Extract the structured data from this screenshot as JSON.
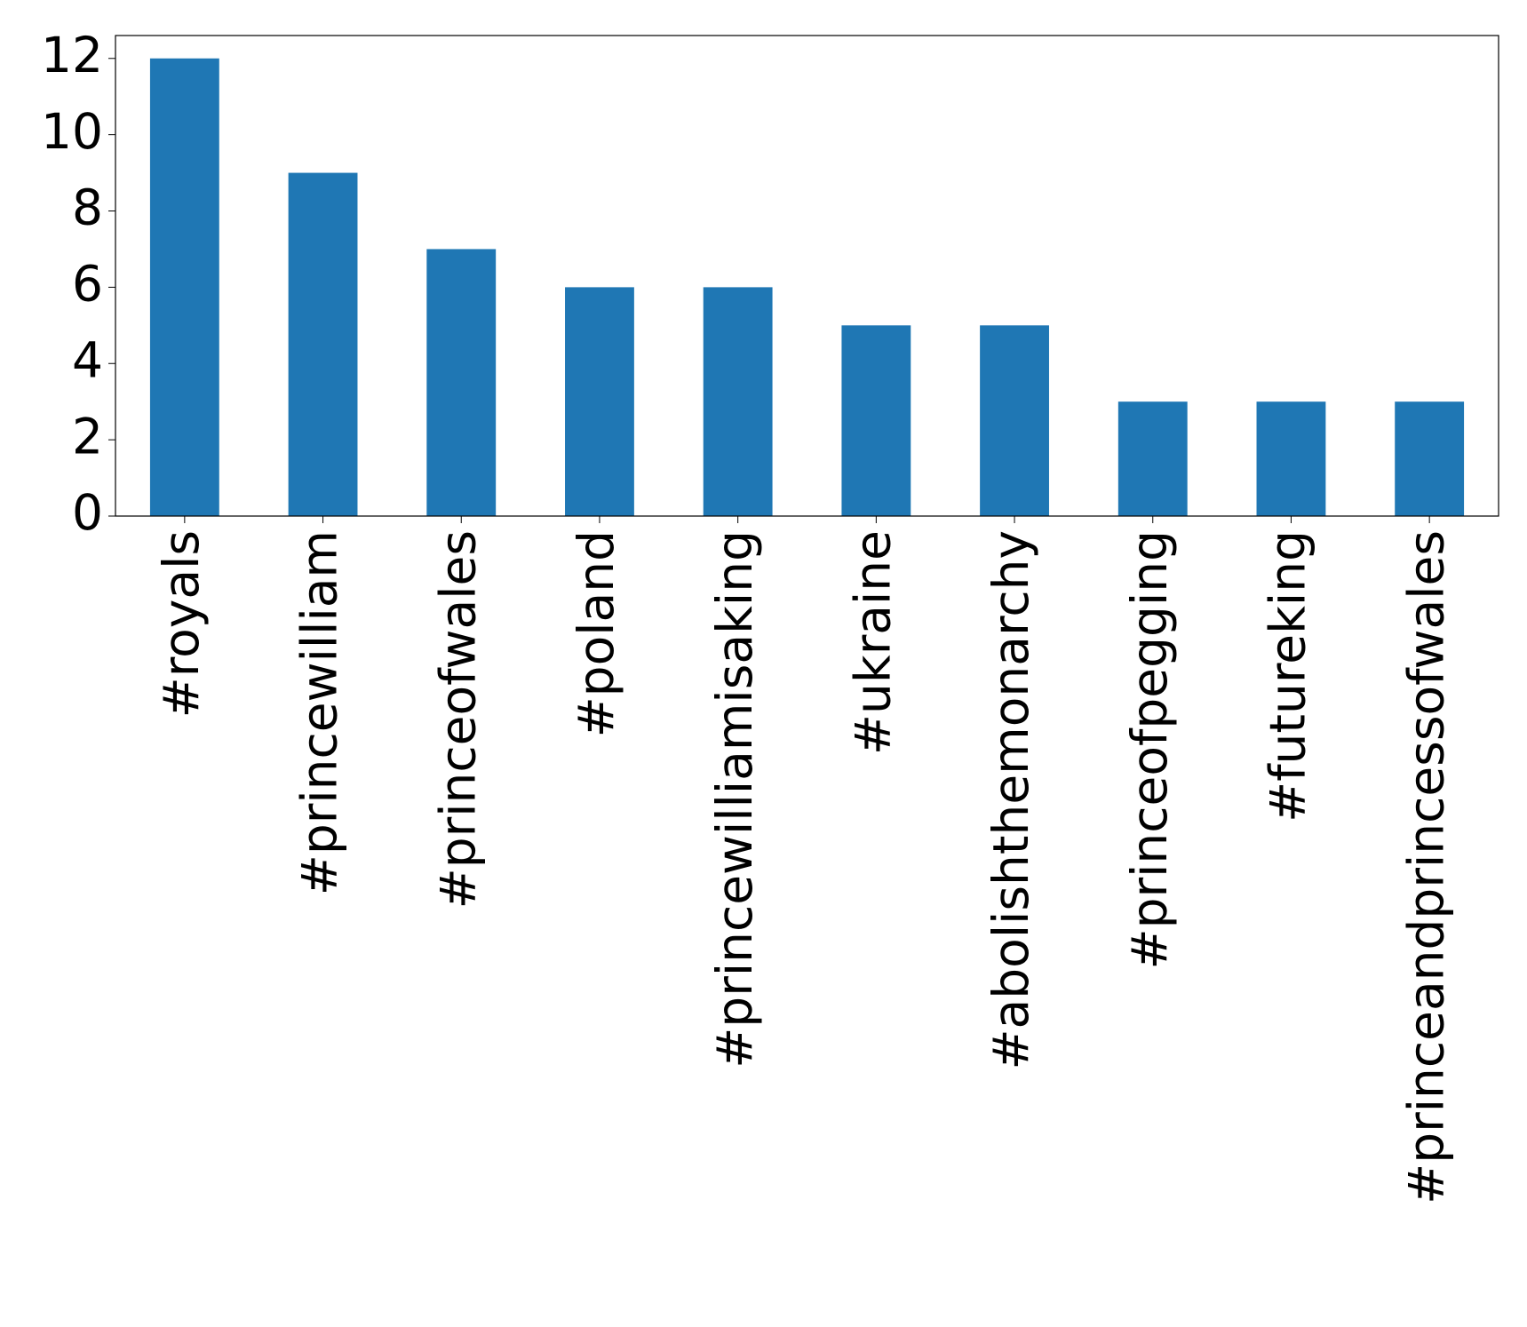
{
  "chart_data": {
    "type": "bar",
    "categories": [
      "#royals",
      "#princewilliam",
      "#princeofwales",
      "#poland",
      "#princewilliamisaking",
      "#ukraine",
      "#abolishthemonarchy",
      "#princeofpegging",
      "#futureking",
      "#princeandprincessofwales"
    ],
    "values": [
      12,
      9,
      7,
      6,
      6,
      5,
      5,
      3,
      3,
      3
    ],
    "color": "#1f77b4",
    "ylim": [
      0,
      12.6
    ],
    "yticks": [
      0,
      2,
      4,
      6,
      8,
      10,
      12
    ],
    "grid": false
  }
}
